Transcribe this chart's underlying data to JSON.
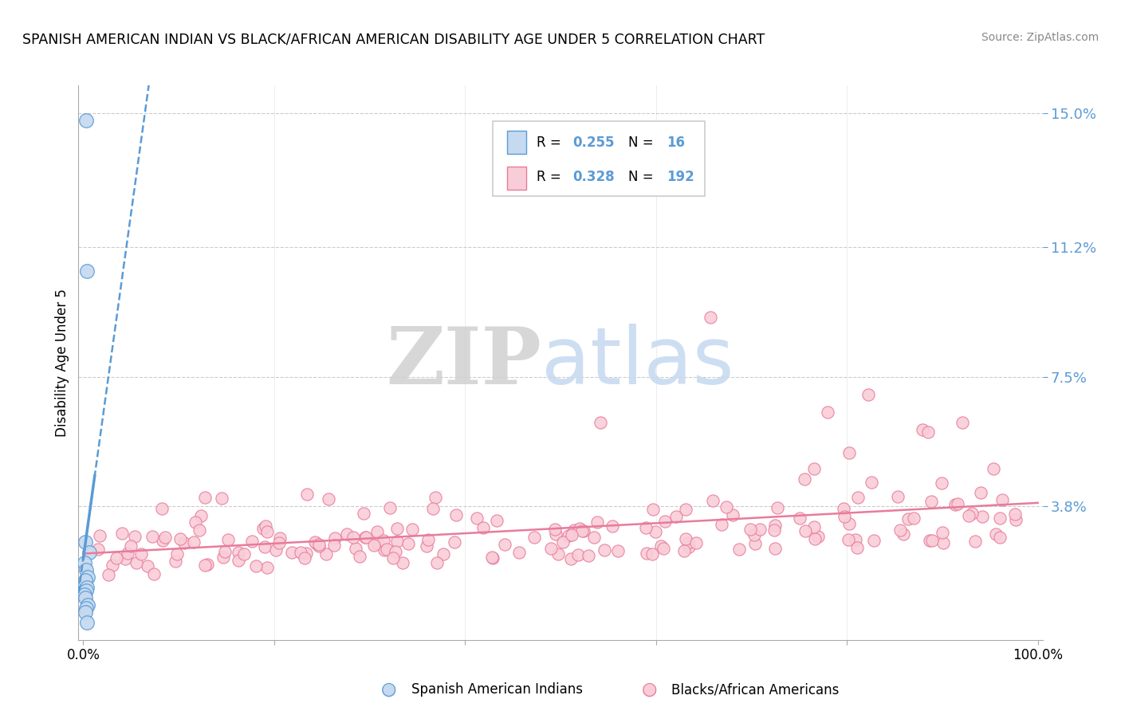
{
  "title": "SPANISH AMERICAN INDIAN VS BLACK/AFRICAN AMERICAN DISABILITY AGE UNDER 5 CORRELATION CHART",
  "source": "Source: ZipAtlas.com",
  "ylabel": "Disability Age Under 5",
  "ylim": [
    0,
    0.158
  ],
  "xlim": [
    -0.005,
    1.005
  ],
  "legend_blue_r": "0.255",
  "legend_blue_n": "16",
  "legend_pink_r": "0.328",
  "legend_pink_n": "192",
  "blue_fill": "#c5d9f0",
  "blue_edge": "#5b9bd5",
  "pink_fill": "#f9cdd8",
  "pink_edge": "#e87b9b",
  "trend_blue_color": "#5b9bd5",
  "trend_pink_color": "#e87b9b",
  "grid_color": "#cccccc",
  "ytick_vals": [
    0.038,
    0.075,
    0.112,
    0.15
  ],
  "ytick_labels": [
    "3.8%",
    "7.5%",
    "11.2%",
    "15.0%"
  ],
  "xtick_vals": [
    0.0,
    1.0
  ],
  "xtick_labels": [
    "0.0%",
    "100.0%"
  ],
  "blue_x": [
    0.003,
    0.004,
    0.002,
    0.006,
    0.001,
    0.003,
    0.005,
    0.002,
    0.004,
    0.003,
    0.001,
    0.002,
    0.005,
    0.003,
    0.002,
    0.004
  ],
  "blue_y": [
    0.148,
    0.105,
    0.028,
    0.025,
    0.022,
    0.02,
    0.018,
    0.017,
    0.015,
    0.014,
    0.013,
    0.012,
    0.01,
    0.009,
    0.008,
    0.005
  ],
  "marker_size": 120,
  "watermark_zip_color": "#d0d0d0",
  "watermark_atlas_color": "#c5d9f0",
  "legend_label_blue": "Spanish American Indians",
  "legend_label_pink": "Blacks/African Americans"
}
